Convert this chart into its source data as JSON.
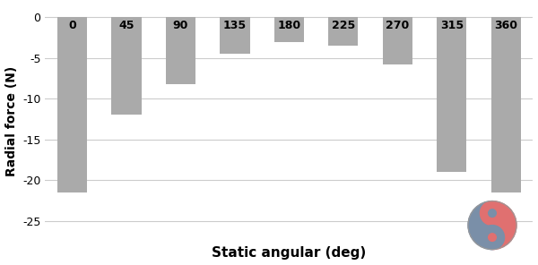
{
  "categories": [
    "0",
    "45",
    "90",
    "135",
    "180",
    "225",
    "270",
    "315",
    "360"
  ],
  "values": [
    -21.5,
    -12.0,
    -8.2,
    -4.5,
    -3.0,
    -3.5,
    -5.8,
    -19.0,
    -21.5
  ],
  "bar_color": "#aaaaaa",
  "xlabel": "Static angular (deg)",
  "ylabel": "Radial force (N)",
  "ylim": [
    -27,
    1.5
  ],
  "yticks": [
    0,
    -5,
    -10,
    -15,
    -20,
    -25
  ],
  "background_color": "#ffffff",
  "grid_color": "#cccccc",
  "xlabel_fontsize": 11,
  "ylabel_fontsize": 10,
  "tick_fontsize": 9,
  "bar_label_fontsize": 9,
  "bar_width": 0.55,
  "logo_left_color": "#7a8fa8",
  "logo_right_color": "#e07070"
}
